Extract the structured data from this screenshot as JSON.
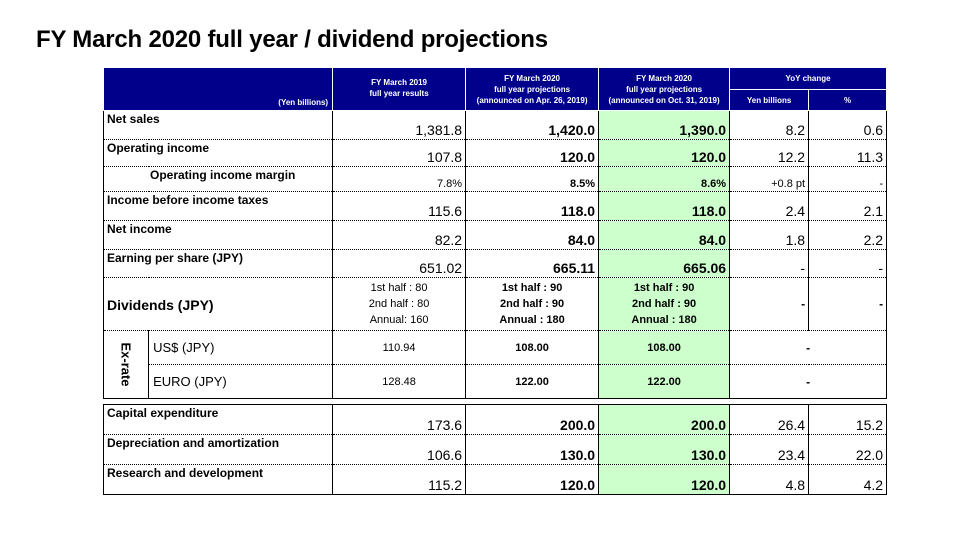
{
  "title": "FY March 2020 full year / dividend projections",
  "colors": {
    "header_bg": "#00008b",
    "highlight": "#ccffcc"
  },
  "header": {
    "unit": "(Yen billions)",
    "col1": [
      "FY March 2019",
      "full year results"
    ],
    "col2": [
      "FY March 2020",
      "full year projections",
      "(announced on Apr. 26, 2019)"
    ],
    "col3": [
      "FY March 2020",
      "full year projections",
      "(announced on Oct. 31, 2019)"
    ],
    "yoy": "YoY change",
    "yoy_yen": "Yen billions",
    "yoy_pct": "%"
  },
  "rows": [
    {
      "label": "Net sales",
      "c1": "1,381.8",
      "c2": "1,420.0",
      "c3": "1,390.0",
      "c4": "8.2",
      "c5": "0.6"
    },
    {
      "label": "Operating income",
      "c1": "107.8",
      "c2": "120.0",
      "c3": "120.0",
      "c4": "12.2",
      "c5": "11.3"
    },
    {
      "label": "Operating income margin",
      "c1": "7.8%",
      "c2": "8.5%",
      "c3": "8.6%",
      "c4": "+0.8 pt",
      "c5": "-"
    },
    {
      "label": "Income before income taxes",
      "c1": "115.6",
      "c2": "118.0",
      "c3": "118.0",
      "c4": "2.4",
      "c5": "2.1"
    },
    {
      "label": "Net income",
      "c1": "82.2",
      "c2": "84.0",
      "c3": "84.0",
      "c4": "1.8",
      "c5": "2.2"
    },
    {
      "label": "Earning per share (JPY)",
      "c1": "651.02",
      "c2": "665.11",
      "c3": "665.06",
      "c4": "-",
      "c5": "-"
    }
  ],
  "dividends": {
    "label": "Dividends (JPY)",
    "c1": [
      "1st half : 80",
      "2nd half : 80",
      "Annual: 160"
    ],
    "c2": [
      "1st half : 90",
      "2nd half : 90",
      "Annual : 180"
    ],
    "c3": [
      "1st half : 90",
      "2nd half : 90",
      "Annual : 180"
    ],
    "c4": "-",
    "c5": "-"
  },
  "exrate": {
    "label": "Ex-rate",
    "rows": [
      {
        "label": "US$ (JPY)",
        "c1": "110.94",
        "c2": "108.00",
        "c3": "108.00",
        "yoy": "-"
      },
      {
        "label": "EURO (JPY)",
        "c1": "128.48",
        "c2": "122.00",
        "c3": "122.00",
        "yoy": "-"
      }
    ]
  },
  "rows2": [
    {
      "label": "Capital expenditure",
      "c1": "173.6",
      "c2": "200.0",
      "c3": "200.0",
      "c4": "26.4",
      "c5": "15.2"
    },
    {
      "label": "Depreciation and amortization",
      "c1": "106.6",
      "c2": "130.0",
      "c3": "130.0",
      "c4": "23.4",
      "c5": "22.0"
    },
    {
      "label": "Research and development",
      "c1": "115.2",
      "c2": "120.0",
      "c3": "120.0",
      "c4": "4.8",
      "c5": "4.2"
    }
  ]
}
